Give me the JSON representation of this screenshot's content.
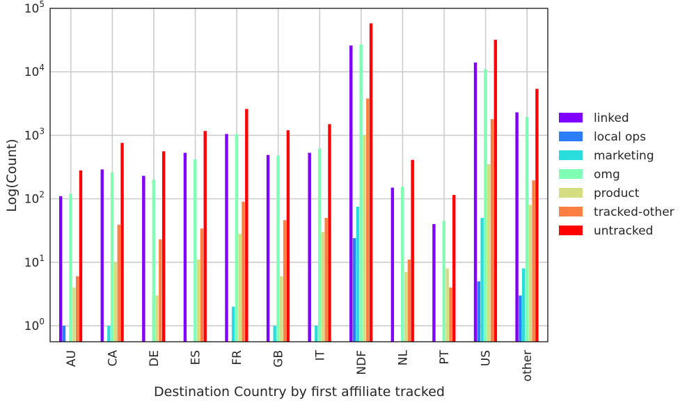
{
  "chart_data": {
    "type": "bar",
    "title": "",
    "xlabel": "Destination Country by first affiliate tracked",
    "ylabel": "Log(Count)",
    "yscale": "log",
    "ylim": [
      0.56,
      100000
    ],
    "y_ticks": [
      {
        "value": 1,
        "base": "10",
        "exp": "0"
      },
      {
        "value": 10,
        "base": "10",
        "exp": "1"
      },
      {
        "value": 100,
        "base": "10",
        "exp": "2"
      },
      {
        "value": 1000,
        "base": "10",
        "exp": "3"
      },
      {
        "value": 10000,
        "base": "10",
        "exp": "4"
      },
      {
        "value": 100000,
        "base": "10",
        "exp": "5"
      }
    ],
    "grid": true,
    "legend_placement": "outside-right",
    "categories": [
      "AU",
      "CA",
      "DE",
      "ES",
      "FR",
      "GB",
      "IT",
      "NDF",
      "NL",
      "PT",
      "US",
      "other"
    ],
    "series": [
      {
        "name": "linked",
        "color": "#8000ff",
        "values": [
          110,
          290,
          230,
          530,
          1050,
          490,
          530,
          26000,
          150,
          40,
          14000,
          2300
        ]
      },
      {
        "name": "local ops",
        "color": "#2c7ef7",
        "values": [
          1,
          null,
          null,
          null,
          null,
          null,
          null,
          24,
          null,
          null,
          5,
          3
        ]
      },
      {
        "name": "marketing",
        "color": "#2adddd",
        "values": [
          null,
          1,
          null,
          null,
          2,
          1,
          1,
          75,
          null,
          null,
          50,
          8
        ]
      },
      {
        "name": "omg",
        "color": "#80ffb4",
        "values": [
          120,
          260,
          200,
          420,
          1050,
          480,
          620,
          27000,
          155,
          45,
          11000,
          1950
        ]
      },
      {
        "name": "product",
        "color": "#d4dd80",
        "values": [
          4,
          10,
          3,
          11,
          28,
          6,
          30,
          1000,
          7,
          8,
          350,
          80
        ]
      },
      {
        "name": "tracked-other",
        "color": "#ff7e41",
        "values": [
          6,
          39,
          23,
          34,
          90,
          46,
          50,
          3800,
          11,
          4,
          1800,
          195
        ]
      },
      {
        "name": "untracked",
        "color": "#ff0000",
        "values": [
          280,
          760,
          560,
          1170,
          2600,
          1200,
          1500,
          58000,
          410,
          115,
          32000,
          5400
        ]
      }
    ]
  }
}
